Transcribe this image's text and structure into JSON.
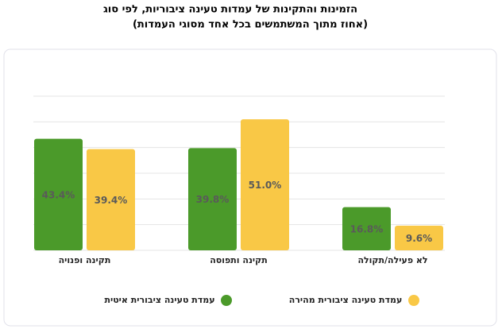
{
  "chart_data": {
    "type": "bar",
    "title": "הזמינות והתקינות של עמדות טעינה ציבוריות, לפי סוג",
    "subtitle": "(אחוז מתוך המשתמשים בכל אחד מסוגי העמדות)",
    "categories": [
      "תקינה ופנויה",
      "תקינה ותפוסה",
      "לא פעילה/תקולה"
    ],
    "series": [
      {
        "name": "עמדת טעינה ציבורית איטית",
        "color": "#4b9a2a",
        "values": [
          43.4,
          39.8,
          16.8
        ],
        "value_labels": [
          "43.4%",
          "39.8%",
          "16.8%"
        ]
      },
      {
        "name": "עמדת טעינה ציבורית מהירה",
        "color": "#f9c846",
        "values": [
          39.4,
          51.0,
          9.6
        ],
        "value_labels": [
          "39.4%",
          "51.0%",
          "9.6%"
        ]
      }
    ],
    "ylim": [
      0,
      60
    ],
    "yticks": [
      0,
      10,
      20,
      30,
      40,
      50,
      60
    ],
    "grid": true
  }
}
